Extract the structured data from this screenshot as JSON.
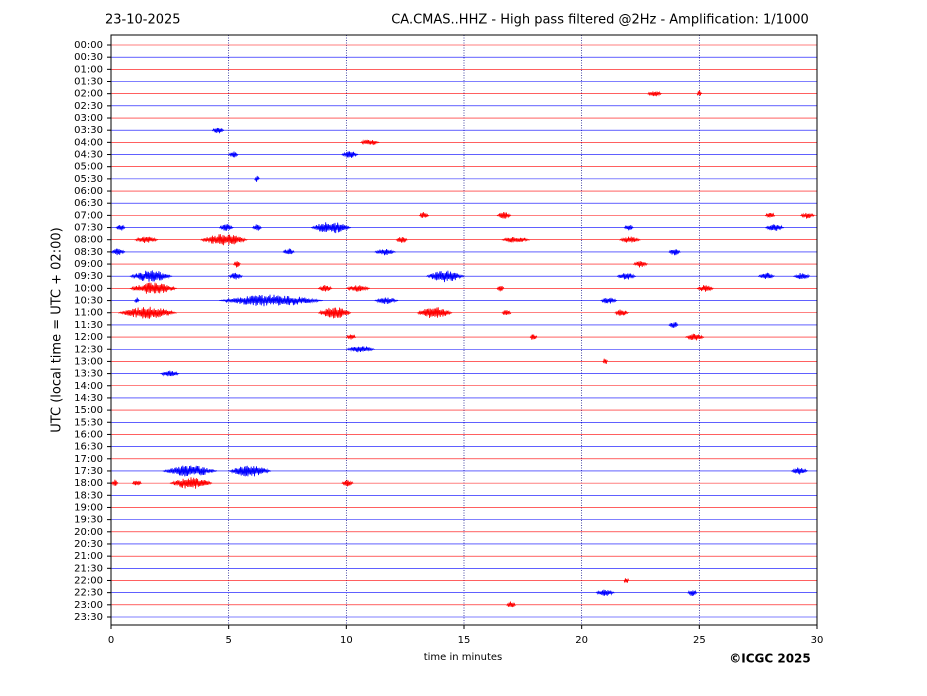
{
  "chart_data": {
    "type": "helicorder",
    "date": "23-10-2025",
    "title": "CA.CMAS..HHZ - High pass filtered @2Hz - Amplification: 1/1000",
    "ylabel": "UTC (local time = UTC + 02:00)",
    "xlabel": "time in minutes",
    "copyright": "©ICGC 2025",
    "colors": [
      "#ff0000",
      "#0000ff"
    ],
    "xlim": [
      0,
      30
    ],
    "xticks": [
      0,
      5,
      10,
      15,
      20,
      25,
      30
    ],
    "grid": true,
    "categories": [
      "00:00",
      "00:30",
      "01:00",
      "01:30",
      "02:00",
      "02:30",
      "03:00",
      "03:30",
      "04:00",
      "04:30",
      "05:00",
      "05:30",
      "06:00",
      "06:30",
      "07:00",
      "07:30",
      "08:00",
      "08:30",
      "09:00",
      "09:30",
      "10:00",
      "10:30",
      "11:00",
      "11:30",
      "12:00",
      "12:30",
      "13:00",
      "13:30",
      "14:00",
      "14:30",
      "15:00",
      "15:30",
      "16:00",
      "16:30",
      "17:00",
      "17:30",
      "18:00",
      "18:30",
      "19:00",
      "19:30",
      "20:00",
      "20:30",
      "21:00",
      "21:30",
      "22:00",
      "22:30",
      "23:00",
      "23:30"
    ],
    "events": [
      {
        "row": "02:00",
        "x": [
          22.8,
          23.4
        ]
      },
      {
        "row": "02:00",
        "x": [
          24.9,
          25.1
        ]
      },
      {
        "row": "03:30",
        "x": [
          4.3,
          4.8
        ]
      },
      {
        "row": "04:00",
        "x": [
          10.6,
          11.4
        ]
      },
      {
        "row": "04:30",
        "x": [
          5.0,
          5.4
        ]
      },
      {
        "row": "04:30",
        "x": [
          9.8,
          10.5
        ]
      },
      {
        "row": "05:30",
        "x": [
          6.1,
          6.3
        ]
      },
      {
        "row": "07:00",
        "x": [
          13.1,
          13.5
        ]
      },
      {
        "row": "07:00",
        "x": [
          16.4,
          17.0
        ]
      },
      {
        "row": "07:00",
        "x": [
          27.8,
          28.2
        ]
      },
      {
        "row": "07:00",
        "x": [
          29.3,
          29.9
        ]
      },
      {
        "row": "07:30",
        "x": [
          0.2,
          0.6
        ]
      },
      {
        "row": "07:30",
        "x": [
          4.6,
          5.2
        ]
      },
      {
        "row": "07:30",
        "x": [
          6.0,
          6.4
        ]
      },
      {
        "row": "07:30",
        "x": [
          8.5,
          10.2
        ]
      },
      {
        "row": "07:30",
        "x": [
          21.8,
          22.2
        ]
      },
      {
        "row": "07:30",
        "x": [
          27.8,
          28.6
        ]
      },
      {
        "row": "08:00",
        "x": [
          1.0,
          2.0
        ]
      },
      {
        "row": "08:00",
        "x": [
          3.8,
          5.8
        ]
      },
      {
        "row": "08:00",
        "x": [
          12.1,
          12.6
        ]
      },
      {
        "row": "08:00",
        "x": [
          16.6,
          17.8
        ]
      },
      {
        "row": "08:00",
        "x": [
          21.6,
          22.5
        ]
      },
      {
        "row": "08:30",
        "x": [
          0,
          0.6
        ]
      },
      {
        "row": "08:30",
        "x": [
          7.3,
          7.8
        ]
      },
      {
        "row": "08:30",
        "x": [
          11.2,
          12.1
        ]
      },
      {
        "row": "08:30",
        "x": [
          23.7,
          24.2
        ]
      },
      {
        "row": "09:00",
        "x": [
          5.2,
          5.5
        ]
      },
      {
        "row": "09:00",
        "x": [
          22.2,
          22.8
        ]
      },
      {
        "row": "09:30",
        "x": [
          0.8,
          2.6
        ]
      },
      {
        "row": "09:30",
        "x": [
          5.0,
          5.6
        ]
      },
      {
        "row": "09:30",
        "x": [
          13.4,
          15.0
        ]
      },
      {
        "row": "09:30",
        "x": [
          21.5,
          22.3
        ]
      },
      {
        "row": "09:30",
        "x": [
          27.5,
          28.2
        ]
      },
      {
        "row": "09:30",
        "x": [
          29.0,
          29.7
        ]
      },
      {
        "row": "10:00",
        "x": [
          0.8,
          2.8
        ]
      },
      {
        "row": "10:00",
        "x": [
          8.8,
          9.4
        ]
      },
      {
        "row": "10:00",
        "x": [
          10.0,
          11.0
        ]
      },
      {
        "row": "10:00",
        "x": [
          16.4,
          16.7
        ]
      },
      {
        "row": "10:00",
        "x": [
          24.9,
          25.6
        ]
      },
      {
        "row": "10:30",
        "x": [
          1.0,
          1.2
        ]
      },
      {
        "row": "10:30",
        "x": [
          4.6,
          9.0
        ]
      },
      {
        "row": "10:30",
        "x": [
          11.2,
          12.2
        ]
      },
      {
        "row": "10:30",
        "x": [
          20.8,
          21.5
        ]
      },
      {
        "row": "11:00",
        "x": [
          0.3,
          2.8
        ]
      },
      {
        "row": "11:00",
        "x": [
          8.8,
          10.2
        ]
      },
      {
        "row": "11:00",
        "x": [
          13.0,
          14.5
        ]
      },
      {
        "row": "11:00",
        "x": [
          16.6,
          17.0
        ]
      },
      {
        "row": "11:00",
        "x": [
          21.4,
          22.0
        ]
      },
      {
        "row": "11:30",
        "x": [
          23.7,
          24.1
        ]
      },
      {
        "row": "12:00",
        "x": [
          10.0,
          10.4
        ]
      },
      {
        "row": "12:00",
        "x": [
          17.8,
          18.1
        ]
      },
      {
        "row": "12:00",
        "x": [
          24.4,
          25.2
        ]
      },
      {
        "row": "12:30",
        "x": [
          10.0,
          11.2
        ]
      },
      {
        "row": "13:00",
        "x": [
          20.9,
          21.1
        ]
      },
      {
        "row": "13:30",
        "x": [
          2.1,
          2.9
        ]
      },
      {
        "row": "17:30",
        "x": [
          2.2,
          4.5
        ]
      },
      {
        "row": "17:30",
        "x": [
          5.0,
          6.8
        ]
      },
      {
        "row": "17:30",
        "x": [
          28.9,
          29.6
        ]
      },
      {
        "row": "18:00",
        "x": [
          0,
          0.3
        ]
      },
      {
        "row": "18:00",
        "x": [
          0.9,
          1.3
        ]
      },
      {
        "row": "18:00",
        "x": [
          2.5,
          4.3
        ]
      },
      {
        "row": "18:00",
        "x": [
          9.8,
          10.3
        ]
      },
      {
        "row": "22:00",
        "x": [
          21.8,
          22.0
        ]
      },
      {
        "row": "22:30",
        "x": [
          20.6,
          21.4
        ]
      },
      {
        "row": "22:30",
        "x": [
          24.5,
          24.9
        ]
      },
      {
        "row": "23:00",
        "x": [
          16.8,
          17.2
        ]
      }
    ]
  }
}
